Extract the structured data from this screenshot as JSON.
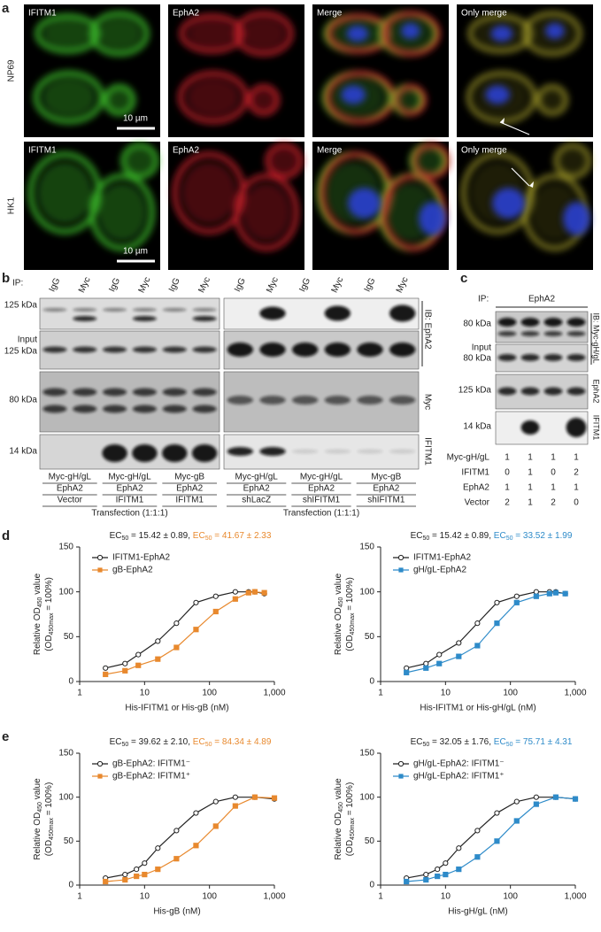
{
  "panel_labels": [
    "a",
    "b",
    "c",
    "d",
    "e"
  ],
  "a": {
    "columns": [
      "IFITM1",
      "EphA2",
      "Merge",
      "Only merge"
    ],
    "rows": [
      "NP69",
      "HK1"
    ],
    "scale_bar": "10 µm"
  },
  "b": {
    "ip": "IP:",
    "lanes": [
      "IgG",
      "Myc"
    ],
    "markers": [
      "125 kDa",
      "Input",
      "125 kDa",
      "80 kDa",
      "14 kDa"
    ],
    "ib": [
      "IB: EphA2",
      "Myc",
      "IFITM1"
    ],
    "groups_left": [
      [
        "Myc-gH/gL",
        "EphA2",
        "Vector"
      ],
      [
        "Myc-gH/gL",
        "EphA2",
        "IFITM1"
      ],
      [
        "Myc-gB",
        "EphA2",
        "IFITM1"
      ]
    ],
    "groups_right": [
      [
        "Myc-gH/gL",
        "EphA2",
        "shLacZ"
      ],
      [
        "Myc-gH/gL",
        "EphA2",
        "shIFITM1"
      ],
      [
        "Myc-gB",
        "EphA2",
        "shIFITM1"
      ]
    ],
    "transfection": "Transfection (1:1:1)"
  },
  "c": {
    "ip": "IP:",
    "ip_target": "EphA2",
    "markers": [
      "80 kDa",
      "Input",
      "80 kDa",
      "125 kDa",
      "14 kDa"
    ],
    "ib": [
      "IB: Myc-gH/gL",
      "EphA2",
      "IFITM1"
    ],
    "table": [
      [
        "Myc-gH/gL",
        1,
        1,
        1,
        1
      ],
      [
        "IFITM1",
        0,
        1,
        0,
        2
      ],
      [
        "EphA2",
        1,
        1,
        1,
        1
      ],
      [
        "Vector",
        2,
        1,
        2,
        0
      ]
    ]
  },
  "chart_data": [
    {
      "type": "line",
      "annotation": [
        {
          "parts": [
            "EC",
            "50",
            " = 15.42 ± 0.89, "
          ],
          "color": "#222222"
        },
        {
          "parts": [
            "EC",
            "50",
            " = 41.67 ± 2.33"
          ],
          "color": "#e8892e"
        }
      ],
      "x": [
        2.5,
        5,
        8,
        16,
        31,
        62,
        125,
        250,
        400,
        500,
        700
      ],
      "series": [
        {
          "name": "IFITM1-EphA2",
          "color": "#222222",
          "marker": "circle",
          "values": [
            15,
            20,
            30,
            45,
            65,
            88,
            95,
            100,
            100,
            100,
            98
          ]
        },
        {
          "name": "gB-EphA2",
          "color": "#e8892e",
          "marker": "square",
          "values": [
            8,
            12,
            18,
            25,
            38,
            58,
            78,
            92,
            99,
            100,
            99
          ]
        }
      ],
      "xscale": "log",
      "xlim": [
        1,
        1000
      ],
      "xticks": [
        1,
        10,
        100,
        {
          "value": 1000,
          "label": "1,000"
        }
      ],
      "ylim": [
        0,
        150
      ],
      "yticks": [
        0,
        50,
        100,
        150
      ],
      "xlabel": "His-IFITM1 or His-gB (nM)",
      "ylabel": [
        [
          "Relative OD",
          "450",
          " value"
        ],
        [
          "(OD",
          "450max",
          " = 100%)"
        ]
      ],
      "legend": "upper-left"
    },
    {
      "type": "line",
      "annotation": [
        {
          "parts": [
            "EC",
            "50",
            " = 15.42 ± 0.89, "
          ],
          "color": "#222222"
        },
        {
          "parts": [
            "EC",
            "50",
            " = 33.52 ± 1.99"
          ],
          "color": "#2e8bc9"
        }
      ],
      "x": [
        2.5,
        5,
        8,
        16,
        31,
        62,
        125,
        250,
        400,
        500,
        700
      ],
      "series": [
        {
          "name": "IFITM1-EphA2",
          "color": "#222222",
          "marker": "circle",
          "values": [
            15,
            20,
            30,
            43,
            65,
            88,
            95,
            100,
            100,
            100,
            98
          ]
        },
        {
          "name": "gH/gL-EphA2",
          "color": "#2e8bc9",
          "marker": "square",
          "values": [
            10,
            15,
            20,
            28,
            40,
            65,
            88,
            95,
            98,
            99,
            98
          ]
        }
      ],
      "xscale": "log",
      "xlim": [
        1,
        1000
      ],
      "xticks": [
        1,
        10,
        100,
        {
          "value": 1000,
          "label": "1,000"
        }
      ],
      "ylim": [
        0,
        150
      ],
      "yticks": [
        0,
        50,
        100,
        150
      ],
      "xlabel": "His-IFITM1 or His-gH/gL (nM)",
      "ylabel": [
        [
          "Relative OD",
          "450",
          " value"
        ],
        [
          "(OD",
          "450max",
          " = 100%)"
        ]
      ],
      "legend": "upper-left"
    },
    {
      "type": "line",
      "annotation": [
        {
          "parts": [
            "EC",
            "50",
            " = 39.62 ± 2.10, "
          ],
          "color": "#222222"
        },
        {
          "parts": [
            "EC",
            "50",
            " = 84.34 ± 4.89"
          ],
          "color": "#e8892e"
        }
      ],
      "x": [
        2.5,
        5,
        7.5,
        10,
        16,
        31,
        62,
        125,
        250,
        500,
        1000
      ],
      "series": [
        {
          "name": "gB-EphA2: IFITM1⁻",
          "color": "#222222",
          "marker": "circle",
          "values": [
            8,
            12,
            18,
            25,
            42,
            62,
            82,
            95,
            100,
            100,
            98
          ]
        },
        {
          "name": "gB-EphA2: IFITM1⁺",
          "color": "#e8892e",
          "marker": "square",
          "values": [
            4,
            6,
            10,
            12,
            18,
            30,
            45,
            67,
            90,
            100,
            99
          ]
        }
      ],
      "xscale": "log",
      "xlim": [
        1,
        1000
      ],
      "xticks": [
        1,
        10,
        100,
        {
          "value": 1000,
          "label": "1,000"
        }
      ],
      "ylim": [
        0,
        150
      ],
      "yticks": [
        0,
        50,
        100,
        150
      ],
      "xlabel": "His-gB (nM)",
      "ylabel": [
        [
          "Relative OD",
          "450",
          " value"
        ],
        [
          "(OD",
          "450max",
          " = 100%)"
        ]
      ],
      "legend": "upper-left"
    },
    {
      "type": "line",
      "annotation": [
        {
          "parts": [
            "EC",
            "50",
            " = 32.05 ± 1.76, "
          ],
          "color": "#222222"
        },
        {
          "parts": [
            "EC",
            "50",
            " = 75.71 ± 4.31"
          ],
          "color": "#2e8bc9"
        }
      ],
      "x": [
        2.5,
        5,
        7.5,
        10,
        16,
        31,
        62,
        125,
        250,
        500,
        1000
      ],
      "series": [
        {
          "name": "gH/gL-EphA2: IFITM1⁻",
          "color": "#222222",
          "marker": "circle",
          "values": [
            8,
            12,
            18,
            25,
            42,
            62,
            82,
            95,
            100,
            100,
            98
          ]
        },
        {
          "name": "gH/gL-EphA2: IFITM1⁺",
          "color": "#2e8bc9",
          "marker": "square",
          "values": [
            4,
            6,
            10,
            12,
            18,
            32,
            50,
            73,
            92,
            100,
            98
          ]
        }
      ],
      "xscale": "log",
      "xlim": [
        1,
        1000
      ],
      "xticks": [
        1,
        10,
        100,
        {
          "value": 1000,
          "label": "1,000"
        }
      ],
      "ylim": [
        0,
        150
      ],
      "yticks": [
        0,
        50,
        100,
        150
      ],
      "xlabel": "His-gH/gL (nM)",
      "ylabel": [
        [
          "Relative OD",
          "450",
          " value"
        ],
        [
          "(OD",
          "450max",
          " = 100%)"
        ]
      ],
      "legend": "upper-left"
    }
  ]
}
